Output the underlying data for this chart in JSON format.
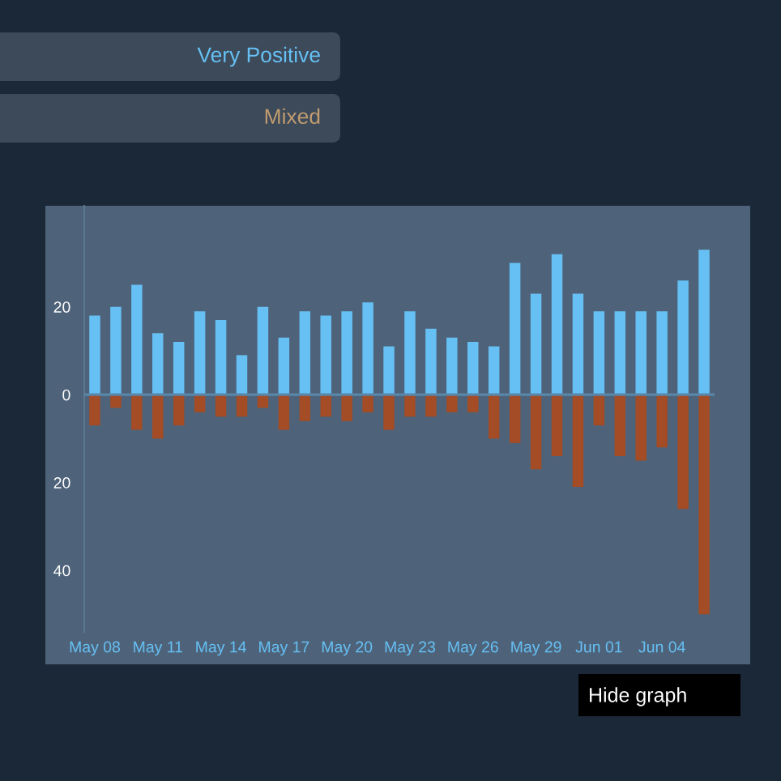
{
  "chart_data": {
    "type": "bar",
    "stacked": true,
    "categories": [
      "May 08",
      null,
      null,
      "May 11",
      null,
      null,
      "May 14",
      null,
      null,
      "May 17",
      null,
      null,
      "May 20",
      null,
      null,
      "May 23",
      null,
      null,
      "May 26",
      null,
      null,
      "May 29",
      null,
      null,
      "Jun 01",
      null,
      null,
      "Jun 04",
      null,
      null
    ],
    "series": [
      {
        "color": "#66c0f4",
        "values": [
          18,
          20,
          25,
          14,
          12,
          19,
          17,
          9,
          20,
          13,
          19,
          18,
          19,
          21,
          11,
          19,
          15,
          13,
          12,
          11,
          30,
          23,
          32,
          23,
          19,
          19,
          19,
          19,
          26,
          33
        ]
      },
      {
        "color": "#a34c25",
        "values": [
          -7,
          -3,
          -8,
          -10,
          -7,
          -4,
          -5,
          -5,
          -3,
          -8,
          -6,
          -5,
          -6,
          -4,
          -8,
          -5,
          -5,
          -4,
          -4,
          -10,
          -11,
          -17,
          -14,
          -21,
          -7,
          -14,
          -15,
          -12,
          -26,
          -50
        ]
      }
    ],
    "ylim": [
      -54,
      43
    ],
    "yticks": [
      {
        "value": -40,
        "label": "40"
      },
      {
        "value": -20,
        "label": "20"
      },
      0,
      20
    ],
    "grid": false,
    "ref_lines": [
      {
        "axis": "y",
        "value": 0,
        "color": "#5a86a8"
      }
    ],
    "annotations": [
      "Very Positive",
      "Mixed",
      "Hide graph"
    ]
  }
}
